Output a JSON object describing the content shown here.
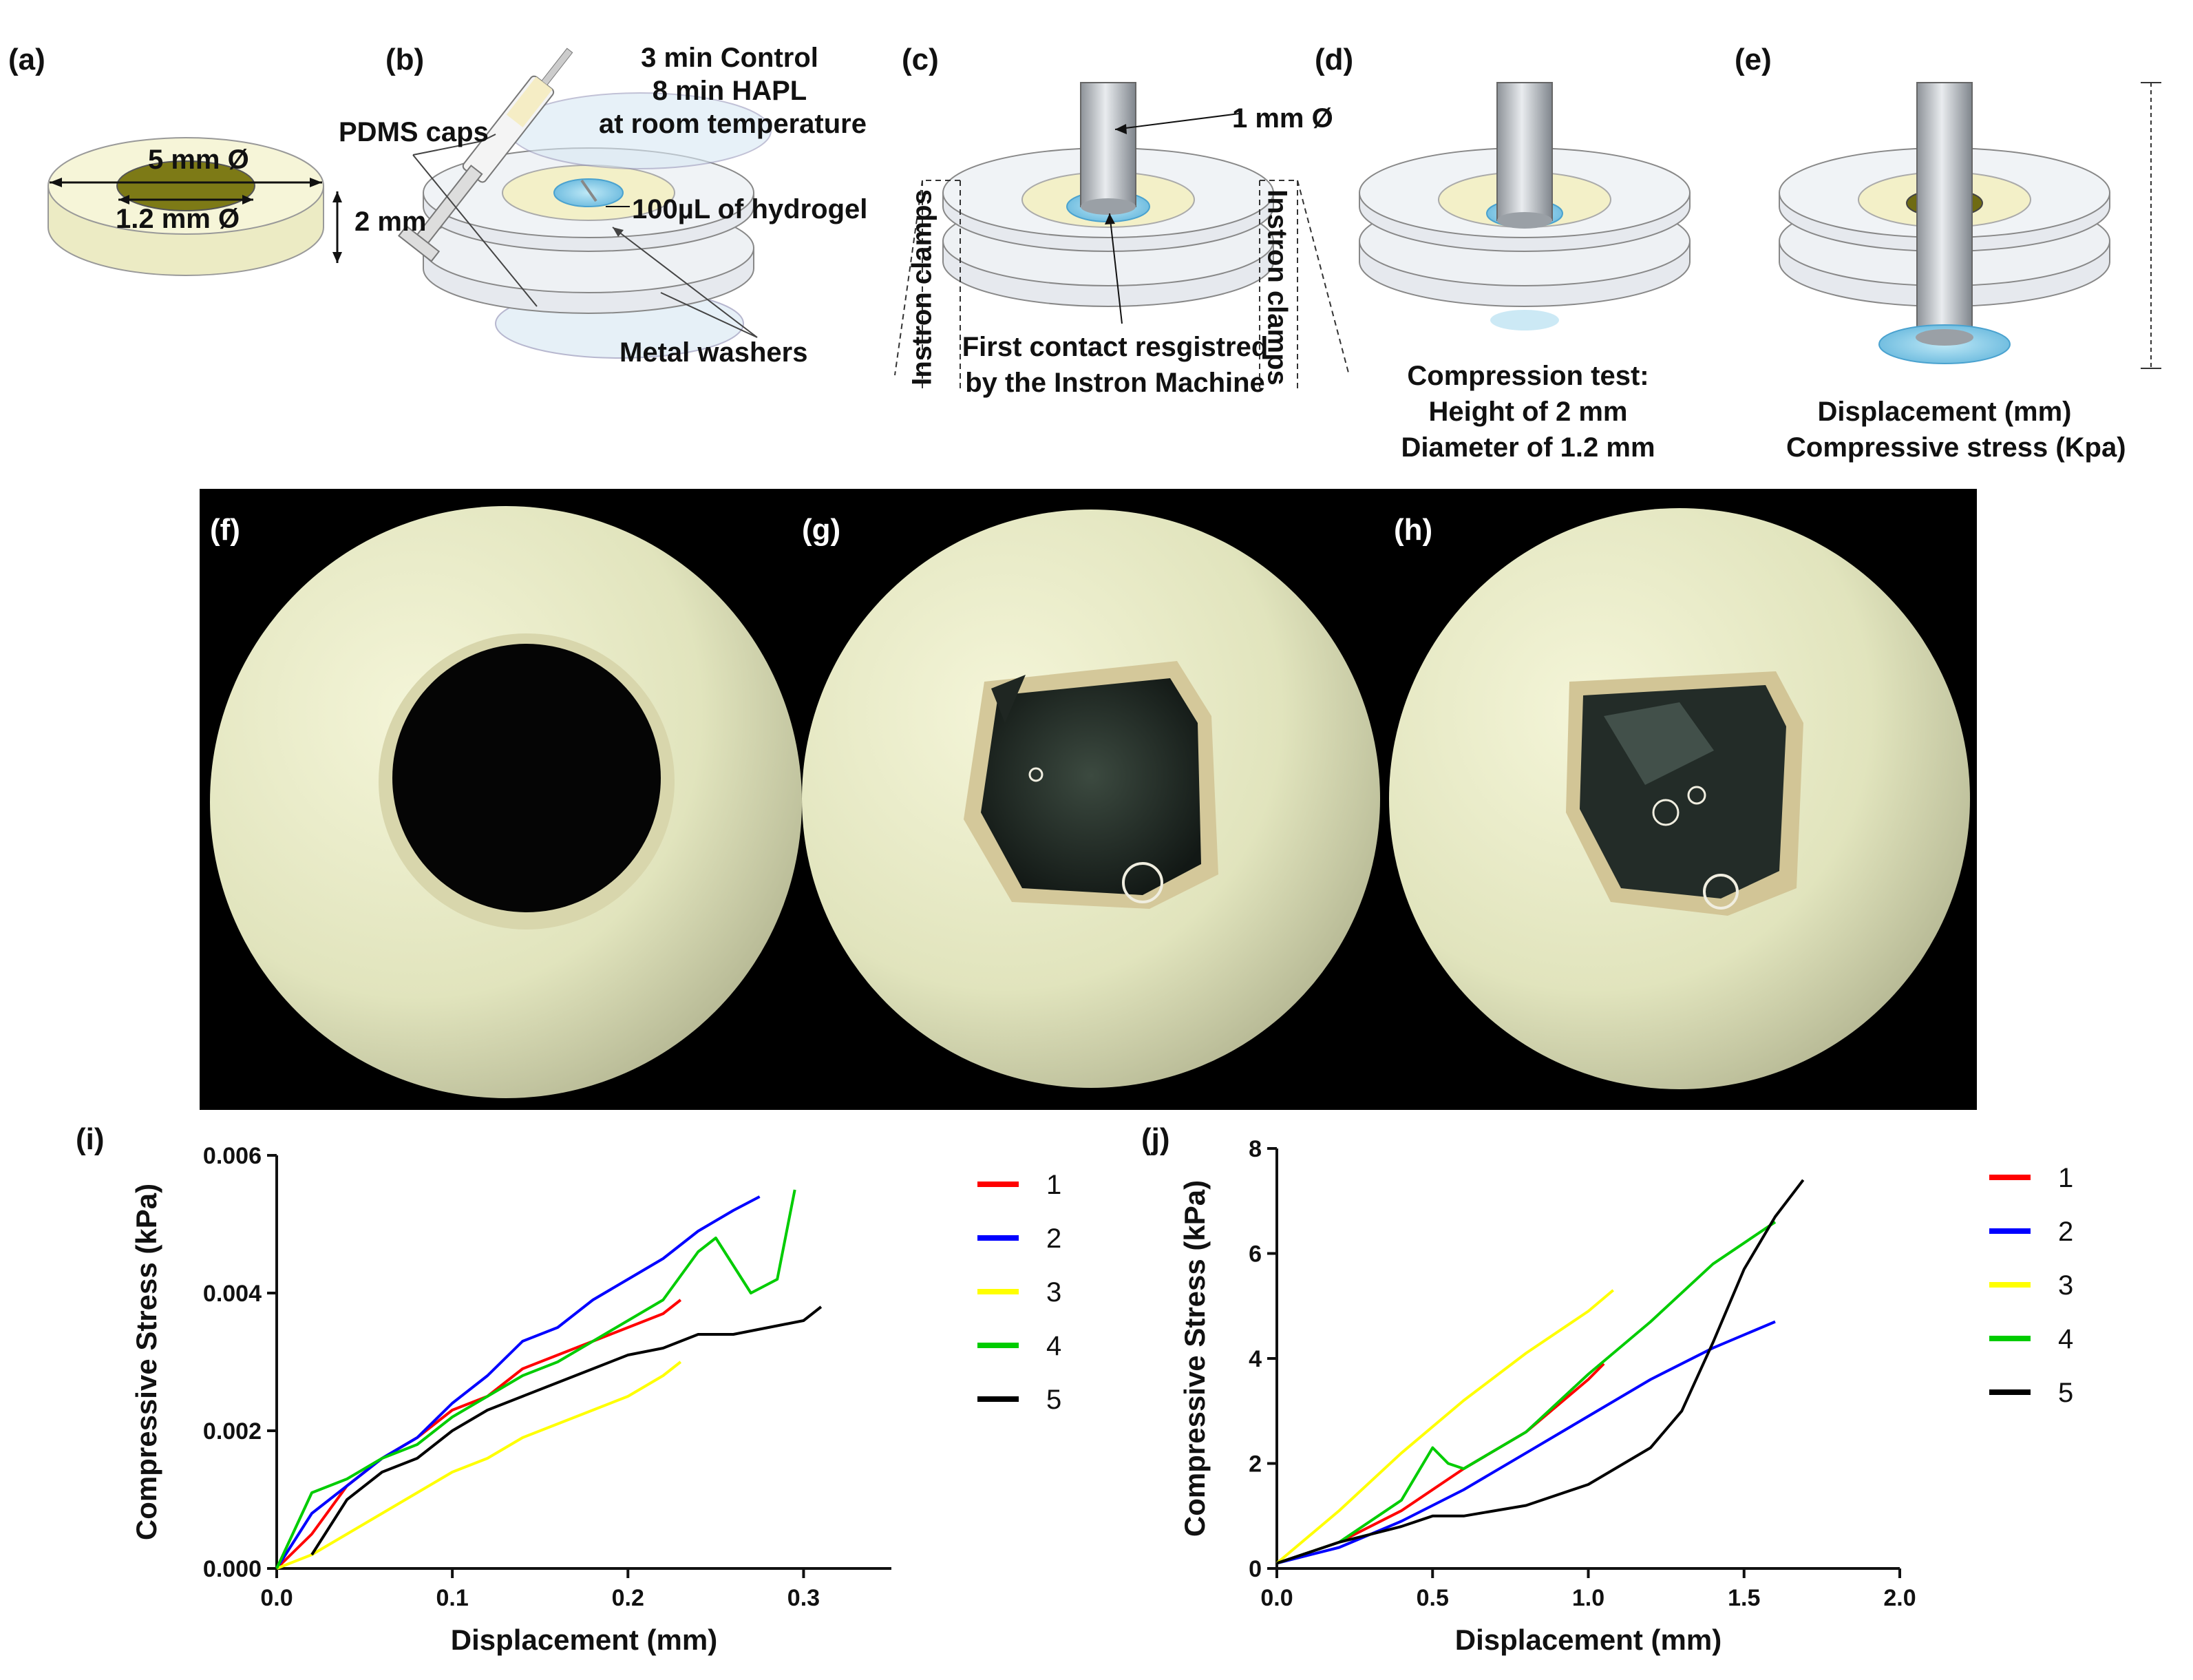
{
  "panels": {
    "a": {
      "label": "(a)",
      "outer_diameter": "5 mm Ø",
      "inner_diameter": "1.2 mm Ø",
      "height": "2 mm"
    },
    "b": {
      "label": "(b)",
      "cure_line1": "3 min Control",
      "cure_line2": "8 min HAPL",
      "cure_line3": "at room temperature",
      "caps": "PDMS caps",
      "hydrogel": "100µL of hydrogel",
      "washers": "Metal washers"
    },
    "c": {
      "label": "(c)",
      "probe": "1 mm Ø",
      "clamps_left": "Instron clamps",
      "clamps_right": "Instron clamps",
      "contact_line1": "First contact resgistred",
      "contact_line2": "by the Instron Machine"
    },
    "d": {
      "label": "(d)",
      "line1": "Compression test:",
      "line2": "Height of 2 mm",
      "line3": "Diameter of 1.2 mm"
    },
    "e": {
      "label": "(e)",
      "line1": "Displacement (mm)",
      "line2": "Compressive stress (Kpa)"
    },
    "f": {
      "label": "(f)"
    },
    "g": {
      "label": "(g)"
    },
    "h": {
      "label": "(h)"
    },
    "i": {
      "label": "(i)"
    },
    "j": {
      "label": "(j)"
    }
  },
  "colors": {
    "s1": "#ff0000",
    "s2": "#0000ff",
    "s3": "#ffff00",
    "s4": "#00cc00",
    "s5": "#000000"
  },
  "chart_data": [
    {
      "id": "i",
      "type": "line",
      "xlabel": "Displacement (mm)",
      "ylabel": "Compressive Stress (kPa)",
      "xlim": [
        0.0,
        0.35
      ],
      "ylim": [
        0.0,
        0.006
      ],
      "xticks": [
        "0.0",
        "0.1",
        "0.2",
        "0.3"
      ],
      "yticks": [
        "0.000",
        "0.002",
        "0.004",
        "0.006"
      ],
      "xtick_values": [
        0.0,
        0.1,
        0.2,
        0.3
      ],
      "ytick_values": [
        0.0,
        0.002,
        0.004,
        0.006
      ],
      "legend": [
        "1",
        "2",
        "3",
        "4",
        "5"
      ],
      "series": [
        {
          "name": "1",
          "color": "#ff0000",
          "x": [
            0,
            0.02,
            0.04,
            0.06,
            0.08,
            0.1,
            0.12,
            0.14,
            0.16,
            0.18,
            0.2,
            0.22,
            0.23
          ],
          "y": [
            0,
            0.0005,
            0.0012,
            0.0016,
            0.0019,
            0.0023,
            0.0025,
            0.0029,
            0.0031,
            0.0033,
            0.0035,
            0.0037,
            0.0039
          ]
        },
        {
          "name": "2",
          "color": "#0000ff",
          "x": [
            0,
            0.02,
            0.04,
            0.06,
            0.08,
            0.1,
            0.12,
            0.14,
            0.16,
            0.18,
            0.2,
            0.22,
            0.24,
            0.26,
            0.275
          ],
          "y": [
            0,
            0.0008,
            0.0012,
            0.0016,
            0.0019,
            0.0024,
            0.0028,
            0.0033,
            0.0035,
            0.0039,
            0.0042,
            0.0045,
            0.0049,
            0.0052,
            0.0054
          ]
        },
        {
          "name": "3",
          "color": "#ffff00",
          "x": [
            0,
            0.02,
            0.04,
            0.06,
            0.08,
            0.1,
            0.12,
            0.14,
            0.16,
            0.18,
            0.2,
            0.22,
            0.23
          ],
          "y": [
            0,
            0.0002,
            0.0005,
            0.0008,
            0.0011,
            0.0014,
            0.0016,
            0.0019,
            0.0021,
            0.0023,
            0.0025,
            0.0028,
            0.003
          ]
        },
        {
          "name": "4",
          "color": "#00cc00",
          "x": [
            0,
            0.02,
            0.04,
            0.06,
            0.08,
            0.1,
            0.12,
            0.14,
            0.16,
            0.18,
            0.2,
            0.22,
            0.24,
            0.25,
            0.27,
            0.285,
            0.295
          ],
          "y": [
            0,
            0.0011,
            0.0013,
            0.0016,
            0.0018,
            0.0022,
            0.0025,
            0.0028,
            0.003,
            0.0033,
            0.0036,
            0.0039,
            0.0046,
            0.0048,
            0.004,
            0.0042,
            0.0055
          ]
        },
        {
          "name": "5",
          "color": "#000000",
          "x": [
            0.02,
            0.04,
            0.06,
            0.08,
            0.1,
            0.12,
            0.14,
            0.16,
            0.18,
            0.2,
            0.22,
            0.24,
            0.26,
            0.28,
            0.3,
            0.31
          ],
          "y": [
            0.0002,
            0.001,
            0.0014,
            0.0016,
            0.002,
            0.0023,
            0.0025,
            0.0027,
            0.0029,
            0.0031,
            0.0032,
            0.0034,
            0.0034,
            0.0035,
            0.0036,
            0.0038
          ]
        }
      ]
    },
    {
      "id": "j",
      "type": "line",
      "xlabel": "Displacement (mm)",
      "ylabel": "Compressive Stress (kPa)",
      "xlim": [
        0.0,
        2.0
      ],
      "ylim": [
        0,
        8
      ],
      "xticks": [
        "0.0",
        "0.5",
        "1.0",
        "1.5",
        "2.0"
      ],
      "yticks": [
        "0",
        "2",
        "4",
        "6",
        "8"
      ],
      "xtick_values": [
        0.0,
        0.5,
        1.0,
        1.5,
        2.0
      ],
      "ytick_values": [
        0,
        2,
        4,
        6,
        8
      ],
      "legend": [
        "1",
        "2",
        "3",
        "4",
        "5"
      ],
      "series": [
        {
          "name": "1",
          "color": "#ff0000",
          "x": [
            0,
            0.2,
            0.4,
            0.6,
            0.8,
            1.0,
            1.05
          ],
          "y": [
            0.1,
            0.5,
            1.1,
            1.9,
            2.6,
            3.6,
            3.9
          ]
        },
        {
          "name": "2",
          "color": "#0000ff",
          "x": [
            0,
            0.2,
            0.4,
            0.6,
            0.8,
            1.0,
            1.2,
            1.4,
            1.6
          ],
          "y": [
            0.1,
            0.4,
            0.9,
            1.5,
            2.2,
            2.9,
            3.6,
            4.2,
            4.7
          ]
        },
        {
          "name": "3",
          "color": "#ffff00",
          "x": [
            0,
            0.2,
            0.4,
            0.6,
            0.8,
            1.0,
            1.08
          ],
          "y": [
            0.1,
            1.1,
            2.2,
            3.2,
            4.1,
            4.9,
            5.3
          ]
        },
        {
          "name": "4",
          "color": "#00cc00",
          "x": [
            0,
            0.2,
            0.4,
            0.5,
            0.55,
            0.6,
            0.8,
            1.0,
            1.2,
            1.4,
            1.6
          ],
          "y": [
            0.1,
            0.5,
            1.3,
            2.3,
            2.0,
            1.9,
            2.6,
            3.7,
            4.7,
            5.8,
            6.6
          ]
        },
        {
          "name": "5",
          "color": "#000000",
          "x": [
            0,
            0.2,
            0.4,
            0.5,
            0.6,
            0.8,
            1.0,
            1.2,
            1.3,
            1.4,
            1.5,
            1.6,
            1.69
          ],
          "y": [
            0.1,
            0.5,
            0.8,
            1.0,
            1.0,
            1.2,
            1.6,
            2.3,
            3.0,
            4.3,
            5.7,
            6.7,
            7.4
          ]
        }
      ]
    }
  ]
}
